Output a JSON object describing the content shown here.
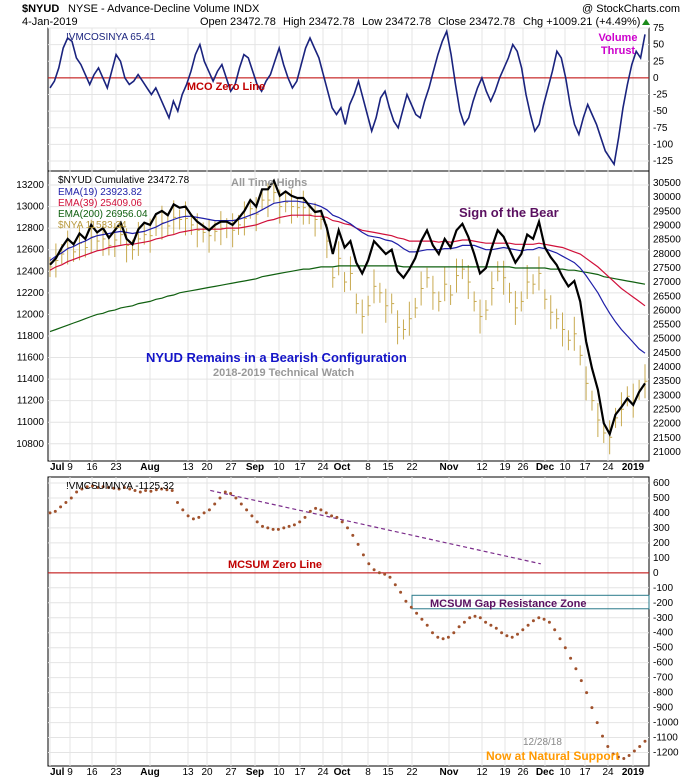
{
  "header": {
    "symbol": "$NYUD",
    "description": "NYSE - Advance-Decline Volume INDX",
    "watermark": "@ StockCharts.com",
    "date": "4-Jan-2019",
    "open": "Open 23472.78",
    "high": "High 23472.78",
    "low": "Low 23472.78",
    "close": "Close 23472.78",
    "chg": "Chg +1009.21 (+4.49%)"
  },
  "colors": {
    "mco_line": "#1a237e",
    "zero_line": "#c00000",
    "cumulative": "#000000",
    "ema19": "#1f1fa8",
    "ema39": "#d0103a",
    "ema200": "#106010",
    "nya_bars": "#c8aa50",
    "mcsum_dots": "#a0522d",
    "trend": "#7b2d8b",
    "blue_text": "#1414c8",
    "magenta_text": "#cc00cc",
    "orange_text": "#ff9900",
    "purple_text": "#5a1060"
  },
  "x_axis": {
    "labels": [
      "Jul",
      "9",
      "16",
      "23",
      "Aug",
      "13",
      "20",
      "27",
      "Sep",
      "10",
      "17",
      "24",
      "Oct",
      "8",
      "15",
      "22",
      "Nov",
      "12",
      "19",
      "26",
      "Dec",
      "10",
      "17",
      "24",
      "2019"
    ],
    "bold": [
      "Jul",
      "Aug",
      "Sep",
      "Oct",
      "Nov",
      "Dec",
      "2019"
    ]
  },
  "chart_data": [
    {
      "type": "line",
      "name": "panel-mco",
      "legend": "!VMCOSINYA 65.41",
      "ylim": [
        -140,
        75
      ],
      "yticks": [
        75,
        50,
        25,
        0,
        -25,
        -50,
        -75,
        -100,
        -125
      ],
      "zero_label": "MCO Zero Line",
      "thrust_label": [
        "Volume",
        "Thrust"
      ],
      "series": [
        {
          "values": [
            -15,
            -5,
            15,
            45,
            60,
            55,
            30,
            20,
            5,
            -10,
            5,
            15,
            0,
            -15,
            10,
            35,
            25,
            0,
            -10,
            -5,
            5,
            -5,
            -15,
            -25,
            -15,
            -30,
            -45,
            -60,
            -35,
            -50,
            -25,
            -10,
            10,
            35,
            50,
            25,
            10,
            -5,
            10,
            20,
            0,
            -20,
            -10,
            15,
            35,
            30,
            10,
            -10,
            -20,
            -5,
            5,
            25,
            45,
            20,
            0,
            -15,
            -5,
            20,
            45,
            60,
            45,
            30,
            5,
            -20,
            -45,
            -55,
            -45,
            -70,
            -40,
            -25,
            -5,
            -30,
            -55,
            -80,
            -60,
            -30,
            -20,
            -45,
            -65,
            -75,
            -50,
            -25,
            -40,
            -55,
            -60,
            -35,
            -15,
            10,
            35,
            55,
            70,
            35,
            -10,
            -50,
            -70,
            -60,
            -35,
            -15,
            0,
            -20,
            -35,
            -20,
            0,
            15,
            30,
            50,
            40,
            15,
            -25,
            -55,
            -80,
            -70,
            -40,
            -15,
            10,
            40,
            30,
            0,
            -40,
            -70,
            -85,
            -60,
            -40,
            -55,
            -70,
            -90,
            -110,
            -120,
            -130,
            -90,
            -45,
            -10,
            20,
            40,
            30,
            65.41
          ]
        }
      ]
    },
    {
      "type": "line",
      "name": "panel-price",
      "ylim": [
        10640,
        13330
      ],
      "yticks_left": [
        13200,
        13000,
        12800,
        12600,
        12400,
        12200,
        12000,
        11800,
        11600,
        11400,
        11200,
        11000,
        10800
      ],
      "yticks_right": [
        30500,
        30000,
        29500,
        29000,
        28500,
        28000,
        27500,
        27000,
        26500,
        26000,
        25500,
        25000,
        24500,
        24000,
        23500,
        23000,
        22500,
        22000,
        21500,
        21000
      ],
      "legend": [
        {
          "text": "$NYUD Cumulative 23472.78",
          "color": "#000000"
        },
        {
          "text": "EMA(19) 23923.82",
          "color": "#1f1fa8"
        },
        {
          "text": "EMA(39) 25409.06",
          "color": "#d0103a"
        },
        {
          "text": "EMA(200) 26956.04",
          "color": "#106010"
        },
        {
          "text": "$NYA 11533.34",
          "color": "#b89a40"
        }
      ],
      "annotations": {
        "all_time_highs": "All Time Highs",
        "sign_of_bear": "Sign of the Bear",
        "bearish": "NYUD Remains in a Bearish Configuration",
        "watch": "2018-2019 Technical Watch"
      },
      "series": [
        {
          "name": "$NYUD Cumulative",
          "values": [
            12460,
            12520,
            12620,
            12700,
            12650,
            12750,
            12700,
            12830,
            12760,
            12800,
            12710,
            12780,
            12850,
            12700,
            12650,
            12790,
            12850,
            12830,
            12930,
            12960,
            12920,
            13020,
            12990,
            13000,
            12920,
            12860,
            12820,
            12780,
            12830,
            12860,
            12860,
            12830,
            12890,
            12960,
            13060,
            13000,
            13160,
            13160,
            13240,
            13100,
            13140,
            13100,
            13080,
            13080,
            13010,
            12950,
            12960,
            12800,
            12560,
            12780,
            12620,
            12680,
            12480,
            12380,
            12500,
            12680,
            12620,
            12560,
            12600,
            12400,
            12340,
            12420,
            12520,
            12680,
            12780,
            12640,
            12560,
            12700,
            12620,
            12780,
            12840,
            12720,
            12560,
            12380,
            12430,
            12620,
            12780,
            12720,
            12600,
            12480,
            12560,
            12740,
            12700,
            12860,
            12620,
            12530,
            12460,
            12350,
            12260,
            12310,
            12120,
            11750,
            11500,
            11300,
            10990,
            10890,
            11070,
            11140,
            11220,
            11160,
            11280,
            11360
          ]
        },
        {
          "name": "EMA(19)",
          "values": [
            12500,
            12540,
            12570,
            12610,
            12630,
            12660,
            12680,
            12710,
            12730,
            12740,
            12750,
            12760,
            12770,
            12760,
            12750,
            12760,
            12770,
            12790,
            12810,
            12840,
            12860,
            12880,
            12900,
            12910,
            12910,
            12900,
            12890,
            12880,
            12870,
            12870,
            12870,
            12870,
            12880,
            12900,
            12920,
            12940,
            12970,
            13000,
            13030,
            13040,
            13050,
            13050,
            13050,
            13040,
            13030,
            13020,
            13000,
            12970,
            12920,
            12900,
            12870,
            12840,
            12800,
            12760,
            12730,
            12720,
            12710,
            12690,
            12680,
            12650,
            12610,
            12580,
            12580,
            12590,
            12600,
            12600,
            12600,
            12610,
            12610,
            12620,
            12640,
            12640,
            12640,
            12620,
            12600,
            12600,
            12610,
            12620,
            12610,
            12600,
            12590,
            12600,
            12600,
            12620,
            12610,
            12590,
            12570,
            12540,
            12510,
            12480,
            12430,
            12360,
            12280,
            12200,
            12100,
            12010,
            11930,
            11860,
            11800,
            11740,
            11680,
            11640
          ]
        },
        {
          "name": "EMA(39)",
          "values": [
            12410,
            12440,
            12460,
            12490,
            12510,
            12530,
            12550,
            12570,
            12590,
            12600,
            12620,
            12630,
            12640,
            12650,
            12650,
            12660,
            12670,
            12680,
            12700,
            12710,
            12730,
            12740,
            12760,
            12770,
            12780,
            12790,
            12790,
            12790,
            12790,
            12790,
            12800,
            12800,
            12800,
            12810,
            12820,
            12830,
            12850,
            12870,
            12880,
            12900,
            12910,
            12920,
            12920,
            12920,
            12920,
            12910,
            12910,
            12900,
            12870,
            12860,
            12840,
            12830,
            12800,
            12780,
            12770,
            12760,
            12750,
            12740,
            12730,
            12710,
            12700,
            12680,
            12680,
            12680,
            12680,
            12680,
            12670,
            12680,
            12670,
            12680,
            12690,
            12690,
            12680,
            12670,
            12660,
            12660,
            12660,
            12660,
            12660,
            12650,
            12650,
            12650,
            12650,
            12660,
            12650,
            12640,
            12630,
            12620,
            12600,
            12580,
            12560,
            12520,
            12480,
            12440,
            12390,
            12340,
            12290,
            12240,
            12200,
            12160,
            12120,
            12080
          ]
        },
        {
          "name": "EMA(200)",
          "values": [
            11840,
            11860,
            11880,
            11900,
            11920,
            11940,
            11960,
            11980,
            12000,
            12010,
            12030,
            12040,
            12060,
            12070,
            12080,
            12100,
            12110,
            12120,
            12140,
            12150,
            12170,
            12180,
            12200,
            12210,
            12220,
            12230,
            12240,
            12250,
            12260,
            12270,
            12280,
            12290,
            12300,
            12310,
            12320,
            12330,
            12350,
            12360,
            12370,
            12380,
            12390,
            12400,
            12410,
            12420,
            12420,
            12430,
            12440,
            12440,
            12440,
            12450,
            12450,
            12450,
            12450,
            12450,
            12450,
            12450,
            12450,
            12450,
            12450,
            12450,
            12440,
            12440,
            12440,
            12440,
            12440,
            12440,
            12440,
            12440,
            12440,
            12440,
            12440,
            12440,
            12440,
            12440,
            12440,
            12440,
            12440,
            12440,
            12440,
            12430,
            12430,
            12430,
            12430,
            12430,
            12430,
            12420,
            12420,
            12420,
            12410,
            12410,
            12400,
            12390,
            12380,
            12370,
            12350,
            12340,
            12330,
            12320,
            12310,
            12300,
            12290,
            12280
          ]
        },
        {
          "name": "$NYA",
          "values": [
            12440,
            12500,
            12560,
            12620,
            12580,
            12660,
            12620,
            12720,
            12680,
            12700,
            12640,
            12690,
            12740,
            12640,
            12600,
            12700,
            12740,
            12730,
            12820,
            12850,
            12820,
            12900,
            12880,
            12890,
            12830,
            12780,
            12760,
            12730,
            12770,
            12800,
            12800,
            12780,
            12830,
            12890,
            12980,
            12930,
            13060,
            13060,
            13130,
            13000,
            13040,
            13000,
            12990,
            12990,
            12930,
            12880,
            12880,
            12680,
            12340,
            12520,
            12300,
            12380,
            12100,
            11980,
            12080,
            12260,
            12200,
            12080,
            12100,
            11880,
            11860,
            11960,
            12060,
            12240,
            12340,
            12200,
            12120,
            12280,
            12180,
            12360,
            12420,
            12300,
            12120,
            11980,
            12040,
            12240,
            12400,
            12340,
            12200,
            12060,
            12120,
            12300,
            12280,
            12380,
            12140,
            12020,
            11960,
            11860,
            11760,
            11820,
            11620,
            11360,
            11200,
            11020,
            10900,
            10860,
            11040,
            11120,
            11240,
            11200,
            11300,
            11380
          ]
        }
      ]
    },
    {
      "type": "scatter",
      "name": "panel-mcsum",
      "legend": "!VMCSUMNYA -1125.32",
      "ylim": [
        -1290,
        640
      ],
      "yticks": [
        600,
        500,
        400,
        300,
        200,
        100,
        0,
        -100,
        -200,
        -300,
        -400,
        -500,
        -600,
        -700,
        -800,
        -900,
        -1000,
        -1100,
        -1200
      ],
      "zero_label": "MCSUM Zero Line",
      "gap_label": "MCSUM Gap Resistance Zone",
      "gap_zone": [
        -150,
        -240
      ],
      "trendline_from": [
        0.27,
        550
      ],
      "trendline_to": [
        0.82,
        60
      ],
      "date_note": "12/28/18",
      "support_label": "Now at Natural Support",
      "series": [
        {
          "values": [
            400,
            410,
            440,
            470,
            500,
            540,
            560,
            575,
            580,
            570,
            575,
            570,
            565,
            560,
            570,
            560,
            550,
            540,
            550,
            545,
            555,
            560,
            555,
            550,
            470,
            420,
            380,
            360,
            370,
            400,
            420,
            460,
            500,
            540,
            530,
            500,
            460,
            420,
            380,
            340,
            310,
            300,
            290,
            290,
            300,
            310,
            320,
            340,
            370,
            410,
            430,
            420,
            400,
            380,
            370,
            340,
            300,
            250,
            190,
            120,
            60,
            20,
            0,
            -10,
            -30,
            -80,
            -130,
            -190,
            -230,
            -270,
            -310,
            -350,
            -400,
            -430,
            -440,
            -430,
            -400,
            -360,
            -330,
            -300,
            -290,
            -300,
            -330,
            -350,
            -370,
            -400,
            -420,
            -430,
            -410,
            -380,
            -350,
            -320,
            -300,
            -310,
            -330,
            -380,
            -440,
            -500,
            -570,
            -640,
            -720,
            -800,
            -900,
            -1000,
            -1090,
            -1160,
            -1210,
            -1230,
            -1240,
            -1220,
            -1190,
            -1160,
            -1125.32
          ]
        }
      ]
    }
  ]
}
